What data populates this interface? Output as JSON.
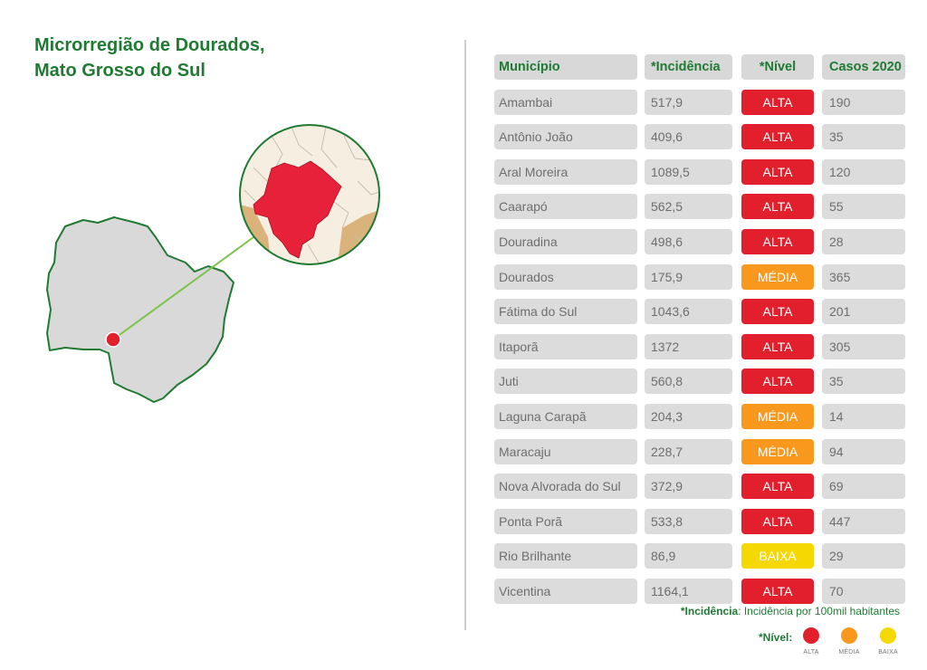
{
  "title": {
    "line1": "Microrregião de Dourados,",
    "line2": "Mato Grosso do Sul"
  },
  "colors": {
    "green": "#1f7a32",
    "alta": "#e2202d",
    "media": "#f8981d",
    "baixa": "#f5d800",
    "region_fill": "#d9d9d9",
    "highlight": "#e8213b",
    "neighbor": "#d9b27c",
    "background_map": "#f6eee1"
  },
  "table": {
    "headers": {
      "municipio": "Município",
      "incidencia": "*Incidência",
      "nivel": "*Nível",
      "casos": "Casos 2020"
    },
    "rows": [
      {
        "municipio": "Amambai",
        "incidencia": "517,9",
        "nivel": "ALTA",
        "level": "alta",
        "casos": "190"
      },
      {
        "municipio": "Antônio João",
        "incidencia": "409,6",
        "nivel": "ALTA",
        "level": "alta",
        "casos": "35"
      },
      {
        "municipio": "Aral Moreira",
        "incidencia": "1089,5",
        "nivel": "ALTA",
        "level": "alta",
        "casos": "120"
      },
      {
        "municipio": "Caarapó",
        "incidencia": "562,5",
        "nivel": "ALTA",
        "level": "alta",
        "casos": "55"
      },
      {
        "municipio": "Douradina",
        "incidencia": "498,6",
        "nivel": "ALTA",
        "level": "alta",
        "casos": "28"
      },
      {
        "municipio": "Dourados",
        "incidencia": "175,9",
        "nivel": "MÉDIA",
        "level": "media",
        "casos": "365"
      },
      {
        "municipio": "Fátima do Sul",
        "incidencia": "1043,6",
        "nivel": "ALTA",
        "level": "alta",
        "casos": "201"
      },
      {
        "municipio": "Itaporã",
        "incidencia": "1372",
        "nivel": "ALTA",
        "level": "alta",
        "casos": "305"
      },
      {
        "municipio": "Juti",
        "incidencia": "560,8",
        "nivel": "ALTA",
        "level": "alta",
        "casos": "35"
      },
      {
        "municipio": "Laguna Carapã",
        "incidencia": "204,3",
        "nivel": "MÉDIA",
        "level": "media",
        "casos": "14"
      },
      {
        "municipio": "Maracaju",
        "incidencia": "228,7",
        "nivel": "MÉDIA",
        "level": "media",
        "casos": "94"
      },
      {
        "municipio": "Nova Alvorada do Sul",
        "incidencia": "372,9",
        "nivel": "ALTA",
        "level": "alta",
        "casos": "69"
      },
      {
        "municipio": "Ponta Porã",
        "incidencia": "533,8",
        "nivel": "ALTA",
        "level": "alta",
        "casos": "447"
      },
      {
        "municipio": "Rio Brilhante",
        "incidencia": "86,9",
        "nivel": "BAIXA",
        "level": "baixa",
        "casos": "29"
      },
      {
        "municipio": "Vicentina",
        "incidencia": "1164,1",
        "nivel": "ALTA",
        "level": "alta",
        "casos": "70"
      }
    ]
  },
  "footnote": {
    "term": "*Incidência",
    "text": ": Incidência por 100mil habitantes"
  },
  "legend": {
    "label": "*Nível:",
    "items": [
      {
        "name": "ALTA",
        "level": "alta"
      },
      {
        "name": "MÉDIA",
        "level": "media"
      },
      {
        "name": "BAIXA",
        "level": "baixa"
      }
    ]
  }
}
